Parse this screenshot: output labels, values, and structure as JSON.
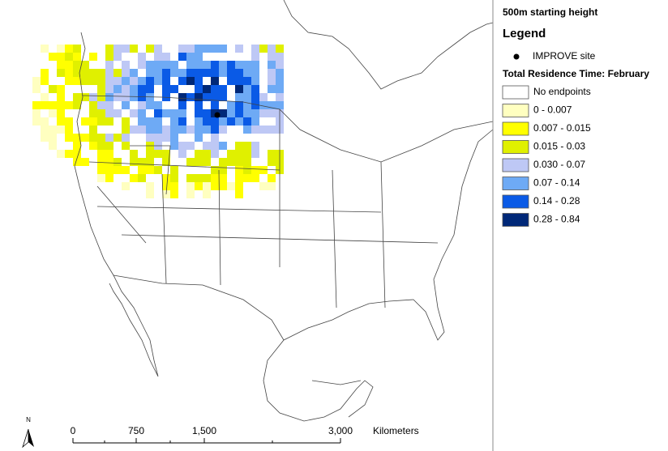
{
  "map": {
    "title": "500m starting height",
    "legend": {
      "heading": "Legend",
      "site_label": "IMPROVE site",
      "site_color": "#000000",
      "subheading": "Total Residence Time: February",
      "classes": [
        {
          "label": "No endpoints",
          "color": "#ffffff"
        },
        {
          "label": "0 - 0.007",
          "color": "#ffffc0"
        },
        {
          "label": "0.007 - 0.015",
          "color": "#ffff00"
        },
        {
          "label": "0.015 - 0.03",
          "color": "#e0f000"
        },
        {
          "label": "0.030 - 0.07",
          "color": "#bec8f5"
        },
        {
          "label": "0.07 - 0.14",
          "color": "#6eaaf5"
        },
        {
          "label": "0.14 - 0.28",
          "color": "#0a5ae6"
        },
        {
          "label": "0.28 - 0.84",
          "color": "#002878"
        }
      ]
    },
    "scale_bar": {
      "labels": [
        "0",
        "750",
        "1,500",
        "3,000"
      ],
      "unit": "Kilometers"
    },
    "north_label": "N"
  }
}
